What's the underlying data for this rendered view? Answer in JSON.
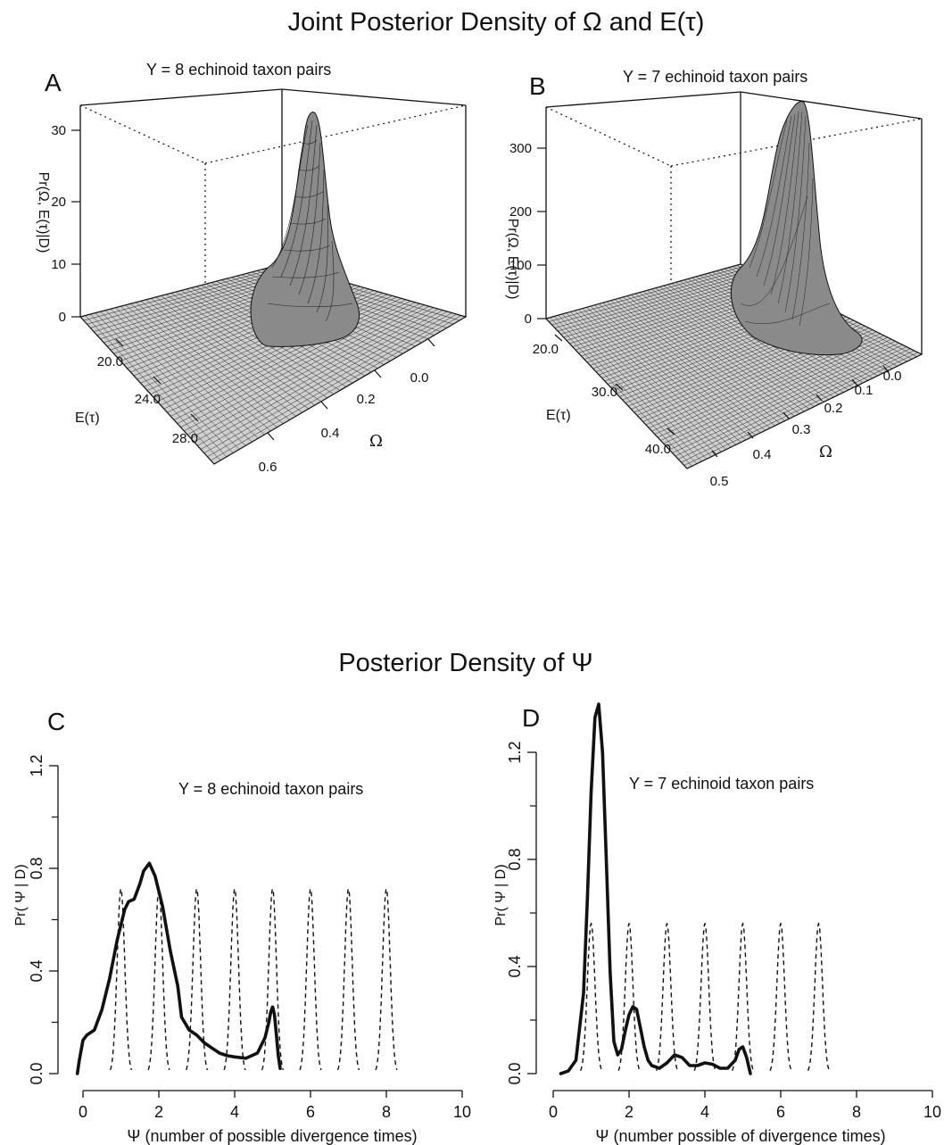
{
  "figure": {
    "title_top": "Joint Posterior Density of Ω and E(τ)",
    "title_bottom": "Posterior Density of Ψ"
  },
  "chart_data": [
    {
      "panel": "A",
      "type": "surface",
      "subtitle": "Y = 8 echinoid taxon pairs",
      "zlabel": "Pr(Ω, E(τ)|D)",
      "xlabel": "E(τ)",
      "ylabel": "Ω",
      "z_ticks": [
        "0",
        "10",
        "20",
        "30"
      ],
      "x_ticks": [
        "20.0",
        "24.0",
        "28.0"
      ],
      "y_ticks": [
        "0.0",
        "0.2",
        "0.4",
        "0.6"
      ],
      "zlim": [
        0,
        33
      ],
      "xlim": [
        18,
        30
      ],
      "ylim": [
        0,
        0.7
      ],
      "peak": {
        "e_tau": 20.5,
        "omega": 0.05,
        "density": 31
      }
    },
    {
      "panel": "B",
      "type": "surface",
      "subtitle": "Y = 7 echinoid taxon pairs",
      "zlabel": "Pr(Ω, E(τ)|D)",
      "xlabel": "E(τ)",
      "ylabel": "Ω",
      "z_ticks": [
        "0",
        "100",
        "200",
        "300"
      ],
      "x_ticks": [
        "20.0",
        "30.0",
        "40.0"
      ],
      "y_ticks": [
        "0.0",
        "0.1",
        "0.2",
        "0.3",
        "0.4",
        "0.5"
      ],
      "zlim": [
        0,
        350
      ],
      "xlim": [
        18,
        45
      ],
      "ylim": [
        0,
        0.55
      ],
      "peak": {
        "e_tau": 19.5,
        "omega": 0.02,
        "density": 330
      }
    },
    {
      "panel": "C",
      "type": "line",
      "subtitle": "Y = 8 echinoid taxon pairs",
      "xlabel": "Ψ (number of possible divergence times)",
      "ylabel": "Pr( Ψ | D)",
      "xlim": [
        -0.3,
        10
      ],
      "ylim": [
        0,
        1.2
      ],
      "x_ticks": [
        0,
        2,
        4,
        6,
        8,
        10
      ],
      "y_ticks": [
        "0.0",
        "0.4",
        "0.8",
        "1.2"
      ],
      "series": [
        {
          "style": "solid",
          "x": [
            -0.15,
            -0.1,
            0,
            0.1,
            0.3,
            0.5,
            0.7,
            0.9,
            1.1,
            1.2,
            1.35,
            1.5,
            1.6,
            1.75,
            1.9,
            2.1,
            2.3,
            2.5,
            2.6,
            2.8,
            3.0,
            3.2,
            3.4,
            3.6,
            3.8,
            4.0,
            4.3,
            4.6,
            4.8,
            4.9,
            4.95,
            5.0,
            5.05,
            5.1,
            5.15,
            5.2
          ],
          "y": [
            0.0,
            0.05,
            0.13,
            0.15,
            0.17,
            0.25,
            0.37,
            0.52,
            0.64,
            0.67,
            0.68,
            0.74,
            0.79,
            0.82,
            0.77,
            0.65,
            0.48,
            0.34,
            0.22,
            0.17,
            0.15,
            0.12,
            0.1,
            0.08,
            0.07,
            0.065,
            0.06,
            0.08,
            0.14,
            0.2,
            0.24,
            0.26,
            0.23,
            0.15,
            0.07,
            0.02
          ]
        },
        {
          "style": "dashed",
          "peaks": [
            1,
            2,
            3,
            4,
            5,
            6,
            7,
            8
          ],
          "height": 0.72,
          "width": 0.1
        }
      ]
    },
    {
      "panel": "D",
      "type": "line",
      "subtitle": "Y = 7 echinoid taxon pairs",
      "xlabel": "Ψ (number possible of divergence times)",
      "ylabel": "Pr( Ψ | D)",
      "xlim": [
        -0.3,
        10
      ],
      "ylim": [
        0,
        1.4
      ],
      "x_ticks": [
        0,
        2,
        4,
        6,
        8,
        10
      ],
      "y_ticks": [
        "0.0",
        "0.4",
        "0.8",
        "1.2"
      ],
      "series": [
        {
          "style": "solid",
          "x": [
            0.2,
            0.4,
            0.6,
            0.8,
            0.9,
            1.0,
            1.1,
            1.2,
            1.3,
            1.4,
            1.5,
            1.6,
            1.7,
            1.8,
            1.9,
            2.0,
            2.1,
            2.2,
            2.3,
            2.4,
            2.5,
            2.6,
            2.8,
            3.0,
            3.2,
            3.4,
            3.6,
            3.8,
            4.0,
            4.2,
            4.4,
            4.6,
            4.8,
            4.9,
            5.0,
            5.1,
            5.2
          ],
          "y": [
            0.0,
            0.01,
            0.05,
            0.3,
            0.65,
            1.05,
            1.33,
            1.38,
            1.2,
            0.8,
            0.38,
            0.12,
            0.07,
            0.09,
            0.16,
            0.22,
            0.25,
            0.24,
            0.17,
            0.1,
            0.05,
            0.03,
            0.02,
            0.04,
            0.07,
            0.06,
            0.03,
            0.03,
            0.04,
            0.035,
            0.02,
            0.02,
            0.05,
            0.09,
            0.1,
            0.06,
            0.0
          ]
        },
        {
          "style": "dashed",
          "peaks": [
            1,
            2,
            3,
            4,
            5,
            6,
            7
          ],
          "height": 0.56,
          "width": 0.1
        }
      ]
    }
  ]
}
